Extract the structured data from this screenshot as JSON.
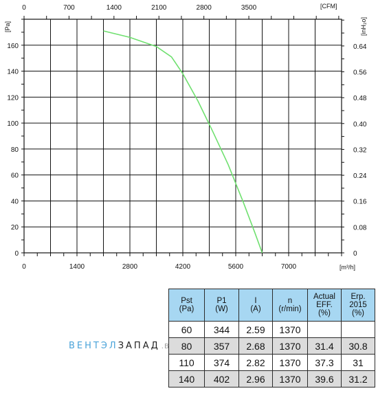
{
  "chart_data": {
    "type": "line",
    "x_unit_bottom": "[m³/h]",
    "x_unit_top": "[CFM]",
    "y_unit_left": "[Pa]",
    "y_unit_right": "[inH₂o]",
    "xlim": [
      0,
      8400
    ],
    "ylim": [
      0,
      180
    ],
    "x_ticks_bottom": [
      "0",
      "1400",
      "2800",
      "4200",
      "5600",
      "7000"
    ],
    "x_ticks_top": [
      "0",
      "700",
      "1400",
      "2100",
      "2800",
      "3500"
    ],
    "y_ticks_left": [
      "0",
      "20",
      "40",
      "60",
      "80",
      "100",
      "120",
      "140",
      "160"
    ],
    "y_ticks_right": [
      "0",
      "0.08",
      "0.16",
      "0.24",
      "0.32",
      "0.40",
      "0.48",
      "0.56",
      "0.64"
    ],
    "grid": true,
    "series": [
      {
        "color": "#6fe06f",
        "x": [
          2100,
          2800,
          3500,
          3900,
          4200,
          4600,
          5000,
          5400,
          5800,
          6100,
          6300
        ],
        "y": [
          171,
          166,
          159,
          151,
          138,
          117,
          93,
          68,
          39,
          16,
          0
        ]
      }
    ]
  },
  "table": {
    "headers": [
      [
        "Pst",
        "(Pa)"
      ],
      [
        "P1",
        "(W)"
      ],
      [
        "I",
        "(A)"
      ],
      [
        "n",
        "(r/min)"
      ],
      [
        "Actual",
        "EFF.",
        "(%)"
      ],
      [
        "Erp.",
        "2015",
        "(%)"
      ]
    ],
    "rows": [
      [
        "60",
        "344",
        "2.59",
        "1370",
        "",
        ""
      ],
      [
        "80",
        "357",
        "2.68",
        "1370",
        "31.4",
        "30.8"
      ],
      [
        "110",
        "374",
        "2.82",
        "1370",
        "37.3",
        "31"
      ],
      [
        "140",
        "402",
        "2.96",
        "1370",
        "39.6",
        "31.2"
      ]
    ]
  },
  "watermark": {
    "part1": "ВЕНТЭЛ",
    "part2": "ЗАПАД",
    "part3": ".BY"
  }
}
